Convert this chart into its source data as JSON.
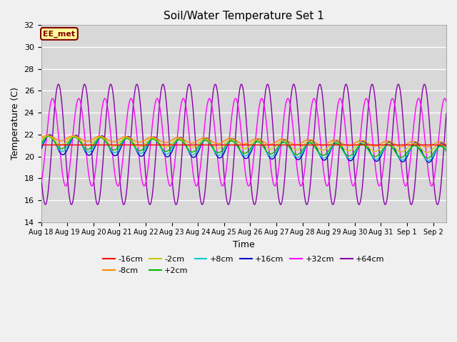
{
  "title": "Soil/Water Temperature Set 1",
  "xlabel": "Time",
  "ylabel": "Temperature (C)",
  "ylim": [
    14,
    32
  ],
  "background_color": "#d8d8d8",
  "plot_bg_color": "#d8d8d8",
  "fig_bg_color": "#f0f0f0",
  "annotation_text": "EE_met",
  "annotation_bg": "#ffff99",
  "annotation_border": "#800000",
  "annotation_text_color": "#800000",
  "series": [
    {
      "label": "-16cm",
      "color": "#ff0000",
      "base": 21.05,
      "amp": 0.0,
      "phase": 0.0,
      "trend": 0.0
    },
    {
      "label": "-8cm",
      "color": "#ff8800",
      "base": 21.7,
      "amp": 0.25,
      "phase": 0.0,
      "trend": -0.04
    },
    {
      "label": "-2cm",
      "color": "#cccc00",
      "base": 21.5,
      "amp": 0.4,
      "phase": 0.1,
      "trend": -0.05
    },
    {
      "label": "+2cm",
      "color": "#00bb00",
      "base": 21.3,
      "amp": 0.55,
      "phase": 0.2,
      "trend": -0.06
    },
    {
      "label": "+8cm",
      "color": "#00cccc",
      "base": 21.2,
      "amp": 0.7,
      "phase": 0.35,
      "trend": -0.06
    },
    {
      "label": "+16cm",
      "color": "#0000cc",
      "base": 21.1,
      "amp": 0.9,
      "phase": 0.5,
      "trend": -0.05
    },
    {
      "label": "+32cm",
      "color": "#ff00ff",
      "base": 21.3,
      "amp": 4.0,
      "phase": 1.2,
      "trend": 0.0
    },
    {
      "label": "+64cm",
      "color": "#8800aa",
      "base": 21.1,
      "amp": 5.5,
      "phase": 2.6,
      "trend": 0.0
    }
  ],
  "xtick_labels": [
    "Aug 18",
    "Aug 19",
    "Aug 20",
    "Aug 21",
    "Aug 22",
    "Aug 23",
    "Aug 24",
    "Aug 25",
    "Aug 26",
    "Aug 27",
    "Aug 28",
    "Aug 29",
    "Aug 30",
    "Aug 31",
    "Sep 1",
    "Sep 2"
  ],
  "ytick_values": [
    14,
    16,
    18,
    20,
    22,
    24,
    26,
    28,
    30,
    32
  ],
  "legend_row1": [
    "-16cm",
    "-8cm",
    "-2cm",
    "+2cm",
    "+8cm",
    "+16cm"
  ],
  "legend_row2": [
    "+32cm",
    "+64cm"
  ]
}
